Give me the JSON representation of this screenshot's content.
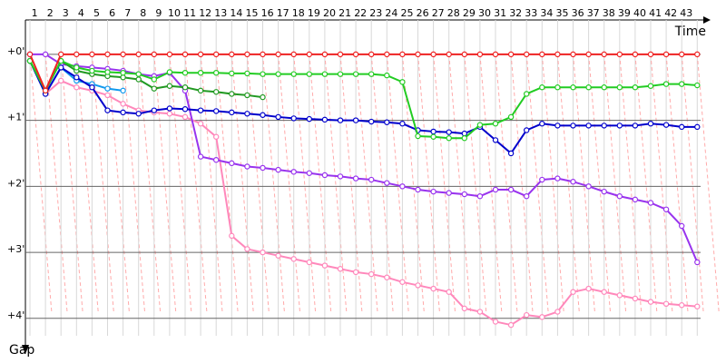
{
  "chart_data": {
    "type": "line",
    "x_label": "Time",
    "y_label": "Gap",
    "categories": [
      null,
      "1",
      "2",
      "3",
      "4",
      "5",
      "6",
      "7",
      "8",
      "9",
      "10",
      "11",
      "12",
      "13",
      "14",
      "15",
      "16",
      "17",
      "18",
      "19",
      "20",
      "21",
      "22",
      "23",
      "24",
      "25",
      "26",
      "27",
      "28",
      "29",
      "30",
      "31",
      "32",
      "33",
      "34",
      "35",
      "36",
      "37",
      "38",
      "39",
      "40",
      "41",
      "42",
      "43"
    ],
    "ylim": [
      -0.52,
      4.47
    ],
    "yticks": [
      {
        "value": 0,
        "label": "+0'"
      },
      {
        "value": 1,
        "label": "+1'"
      },
      {
        "value": 2,
        "label": "+2'"
      },
      {
        "value": 3,
        "label": "+3'"
      },
      {
        "value": 4,
        "label": "+4'"
      }
    ],
    "y_inverted": true,
    "grid": true,
    "series": [
      {
        "color": "#ff88bb",
        "values": [
          0.1,
          0.6,
          0.4,
          0.5,
          0.55,
          0.62,
          0.75,
          0.85,
          0.88,
          0.9,
          0.95,
          1.05,
          1.25,
          2.75,
          2.95,
          3.0,
          3.05,
          3.1,
          3.15,
          3.2,
          3.25,
          3.3,
          3.33,
          3.38,
          3.45,
          3.5,
          3.55,
          3.6,
          3.85,
          3.9,
          4.05,
          4.1,
          3.95,
          3.98,
          3.9,
          3.6,
          3.55,
          3.6,
          3.65,
          3.7,
          3.75,
          3.78,
          3.8,
          3.82
        ]
      },
      {
        "color": "#9933ee",
        "values": [
          0.0,
          0.0,
          0.15,
          0.18,
          0.2,
          0.22,
          0.25,
          0.3,
          0.33,
          0.28,
          0.55,
          1.55,
          1.6,
          1.65,
          1.7,
          1.72,
          1.75,
          1.78,
          1.8,
          1.83,
          1.85,
          1.88,
          1.9,
          1.95,
          2.0,
          2.05,
          2.08,
          2.1,
          2.12,
          2.15,
          2.05,
          2.05,
          2.15,
          1.9,
          1.88,
          1.93,
          2.0,
          2.08,
          2.15,
          2.2,
          2.25,
          2.35,
          2.6,
          3.15
        ]
      },
      {
        "color": "#1199ee",
        "values": [
          0.1,
          0.6,
          0.2,
          0.4,
          0.45,
          0.52,
          0.55,
          null,
          null,
          null,
          null,
          null,
          null,
          null,
          null,
          null,
          null,
          null,
          null,
          null,
          null,
          null,
          null,
          null,
          null,
          null,
          null,
          null,
          null,
          null,
          null,
          null,
          null,
          null,
          null,
          null,
          null,
          null,
          null,
          null,
          null,
          null,
          null,
          null
        ]
      },
      {
        "color": "#0000cc",
        "values": [
          0.1,
          0.6,
          0.2,
          0.35,
          0.5,
          0.85,
          0.88,
          0.9,
          0.85,
          0.82,
          0.83,
          0.85,
          0.86,
          0.88,
          0.9,
          0.92,
          0.95,
          0.97,
          0.98,
          0.99,
          1.0,
          1.0,
          1.02,
          1.03,
          1.05,
          1.15,
          1.17,
          1.18,
          1.2,
          1.1,
          1.3,
          1.5,
          1.15,
          1.05,
          1.08,
          1.08,
          1.08,
          1.08,
          1.08,
          1.08,
          1.05,
          1.07,
          1.1,
          1.1
        ]
      },
      {
        "color": "#229922",
        "values": [
          0.1,
          0.55,
          0.1,
          0.25,
          0.3,
          0.33,
          0.35,
          0.38,
          0.52,
          0.48,
          0.5,
          0.55,
          0.57,
          0.6,
          0.62,
          0.65,
          null,
          null,
          null,
          null,
          null,
          null,
          null,
          null,
          null,
          null,
          null,
          null,
          null,
          null,
          null,
          null,
          null,
          null,
          null,
          null,
          null,
          null,
          null,
          null,
          null,
          null,
          null,
          null
        ]
      },
      {
        "color": "#22cc22",
        "values": [
          0.1,
          0.55,
          0.1,
          0.2,
          0.25,
          0.27,
          0.28,
          0.3,
          0.38,
          0.27,
          0.28,
          0.28,
          0.28,
          0.29,
          0.29,
          0.3,
          0.3,
          0.3,
          0.3,
          0.3,
          0.3,
          0.3,
          0.3,
          0.32,
          0.42,
          1.24,
          1.25,
          1.27,
          1.27,
          1.07,
          1.05,
          0.95,
          0.6,
          0.5,
          0.5,
          0.5,
          0.5,
          0.5,
          0.5,
          0.5,
          0.48,
          0.45,
          0.45,
          0.47
        ]
      },
      {
        "color": "#ee2222",
        "values": [
          0.0,
          0.55,
          0.0,
          0,
          0,
          0,
          0,
          0,
          0,
          0,
          0,
          0,
          0,
          0,
          0,
          0,
          0,
          0,
          0,
          0,
          0,
          0,
          0,
          0,
          0,
          0,
          0,
          0,
          0,
          0,
          0,
          0,
          0,
          0,
          0,
          0,
          0,
          0,
          0,
          0,
          0,
          0,
          0,
          0
        ]
      }
    ]
  }
}
